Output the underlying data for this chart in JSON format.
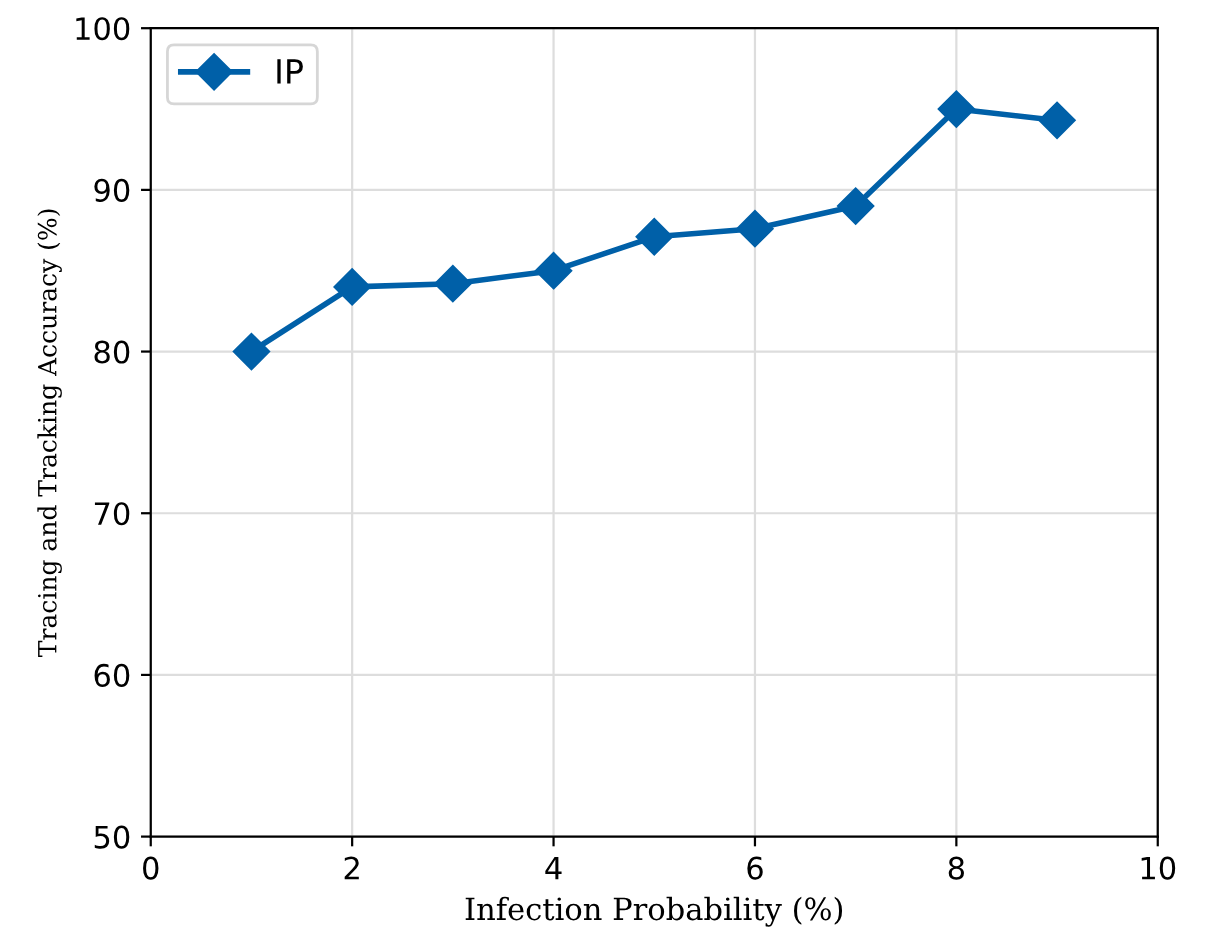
{
  "chart_data": {
    "type": "line",
    "xlabel": "Infection Probability (%)",
    "ylabel": "Tracing and Tracking Accuracy (%)",
    "x": [
      1,
      2,
      3,
      4,
      5,
      6,
      7,
      8,
      9
    ],
    "series": [
      {
        "name": "IP",
        "color": "#0060a8",
        "values": [
          80.0,
          84.0,
          84.2,
          85.0,
          87.1,
          87.6,
          89.0,
          95.0,
          94.3
        ]
      }
    ],
    "xlim": [
      0,
      10
    ],
    "xticks": [
      0,
      2,
      4,
      6,
      8,
      10
    ],
    "ylim": [
      50,
      100
    ],
    "yticks": [
      50,
      60,
      70,
      80,
      90,
      100
    ],
    "grid": true,
    "legend": "top left",
    "marker": "diamond",
    "line_style": "solid"
  }
}
